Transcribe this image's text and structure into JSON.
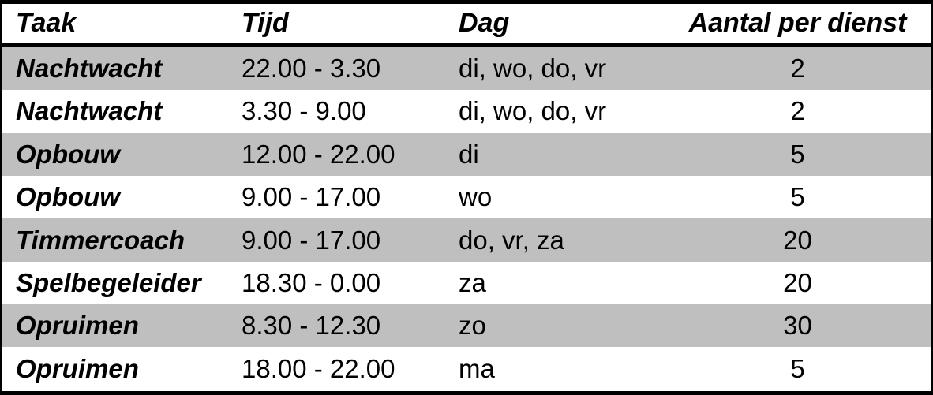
{
  "table": {
    "columns": {
      "taak": "Taak",
      "tijd": "Tijd",
      "dag": "Dag",
      "aantal": "Aantal per dienst"
    },
    "rows": [
      {
        "taak": "Nachtwacht",
        "tijd": "22.00 - 3.30",
        "dag": "di, wo, do, vr",
        "aantal": "2"
      },
      {
        "taak": "Nachtwacht",
        "tijd": "3.30 - 9.00",
        "dag": "di, wo, do, vr",
        "aantal": "2"
      },
      {
        "taak": "Opbouw",
        "tijd": "12.00 - 22.00",
        "dag": "di",
        "aantal": "5"
      },
      {
        "taak": "Opbouw",
        "tijd": "9.00 - 17.00",
        "dag": "wo",
        "aantal": "5"
      },
      {
        "taak": "Timmercoach",
        "tijd": "9.00 - 17.00",
        "dag": "do, vr, za",
        "aantal": "20"
      },
      {
        "taak": "Spelbegeleider",
        "tijd": "18.30 - 0.00",
        "dag": "za",
        "aantal": "20"
      },
      {
        "taak": "Opruimen",
        "tijd": "8.30 - 12.30",
        "dag": "zo",
        "aantal": "30"
      },
      {
        "taak": "Opruimen",
        "tijd": "18.00 - 22.00",
        "dag": "ma",
        "aantal": "5"
      }
    ],
    "colors": {
      "row_shaded": "#bfbfbf",
      "row_plain": "#ffffff",
      "border": "#000000",
      "text": "#000000"
    }
  }
}
